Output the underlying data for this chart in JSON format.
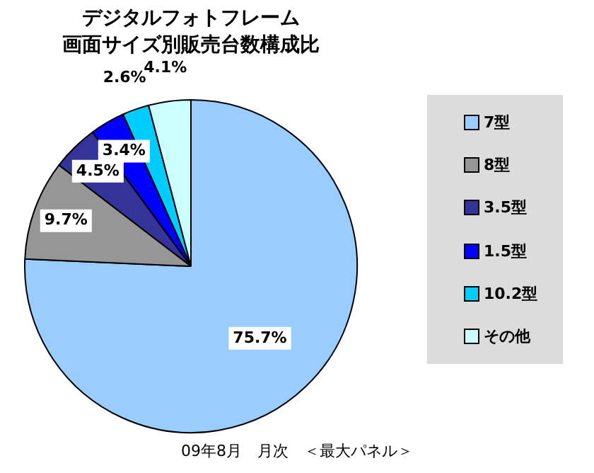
{
  "chart_data": {
    "type": "pie",
    "title": "デジタルフォトフレーム",
    "subtitle": "画面サイズ別販売台数構成比",
    "categories": [
      "7型",
      "8型",
      "3.5型",
      "1.5型",
      "10.2型",
      "その他"
    ],
    "values": [
      75.7,
      9.7,
      4.5,
      3.4,
      2.6,
      4.1
    ],
    "colors": [
      "#99ccff",
      "#969696",
      "#333399",
      "#0000ff",
      "#00ccff",
      "#ccffff"
    ],
    "value_labels": [
      "75.7%",
      "9.7%",
      "4.5%",
      "3.4%",
      "2.6%",
      "4.1%"
    ],
    "legend": "right",
    "annotations": [
      "09年8月　月次　＜最大パネル＞"
    ]
  }
}
